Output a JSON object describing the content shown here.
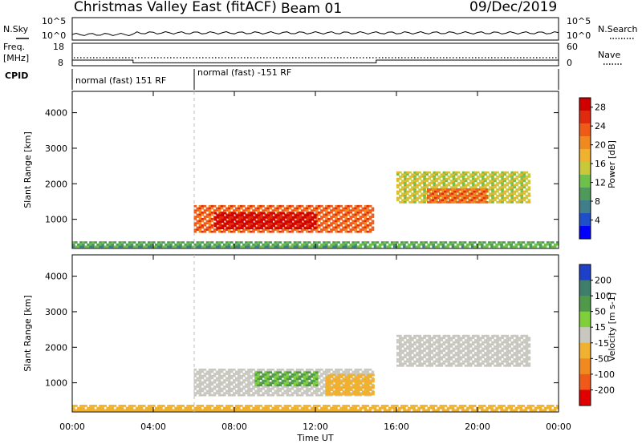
{
  "header": {
    "station": "Christmas Valley East (fitACF)",
    "beam": "Beam 01",
    "date": "09/Dec/2019"
  },
  "top_panels": {
    "nsky_label": "N.Sky",
    "nsearch_label": "N.Search",
    "noise_ticks": [
      "10^5",
      "10^0"
    ],
    "freq_label_1": "Freq.",
    "freq_label_2": "[MHz]",
    "freq_ticks": [
      "18",
      "8"
    ],
    "nave_label": "Nave",
    "nave_ticks": [
      "60",
      "0"
    ],
    "cpid_label": "CPID",
    "cpid_segments": [
      {
        "label": "normal (fast) 151 RF",
        "start_h": 0,
        "end_h": 6
      },
      {
        "label": "normal (fast) -151 RF",
        "start_h": 6,
        "end_h": 24
      }
    ],
    "freq_profile": [
      {
        "start_h": 0,
        "end_h": 3,
        "mhz": 10.5
      },
      {
        "start_h": 3,
        "end_h": 15,
        "mhz": 9.3
      },
      {
        "start_h": 15,
        "end_h": 24,
        "mhz": 10.5
      }
    ]
  },
  "chart_data": [
    {
      "type": "heatmap",
      "parameter": "Power",
      "ylabel": "Slant Range [km]",
      "xlabel": "",
      "ylim": [
        180,
        4600
      ],
      "xlim_hours": [
        0,
        24
      ],
      "yticks": [
        1000,
        2000,
        3000,
        4000
      ],
      "colorbar_label": "Power [dB]",
      "colorbar_ticks": [
        4,
        8,
        12,
        16,
        20,
        24,
        28
      ],
      "colorbar_range": [
        0,
        30
      ],
      "colorbar_colors": [
        "#0000ff",
        "#1e4fc8",
        "#3f7e8a",
        "#4f9a5a",
        "#6fc04a",
        "#c8c83a",
        "#f0b030",
        "#f08a20",
        "#f05a18",
        "#e02a10",
        "#d00000"
      ],
      "regions": [
        {
          "t_start": 6.0,
          "t_end": 14.8,
          "r_min": 620,
          "r_max": 1380,
          "level": 22
        },
        {
          "t_start": 7.0,
          "t_end": 12.0,
          "r_min": 720,
          "r_max": 1150,
          "level": 28
        },
        {
          "t_start": 16.0,
          "t_end": 22.5,
          "r_min": 1450,
          "r_max": 2350,
          "level": 14
        },
        {
          "t_start": 17.5,
          "t_end": 20.5,
          "r_min": 1450,
          "r_max": 1850,
          "level": 22
        },
        {
          "t_start": 0.0,
          "t_end": 24.0,
          "r_min": 200,
          "r_max": 380,
          "level": 10
        }
      ]
    },
    {
      "type": "heatmap",
      "parameter": "Velocity",
      "ylabel": "Slant Range [km]",
      "xlabel": "Time UT",
      "ylim": [
        180,
        4600
      ],
      "xlim_hours": [
        0,
        24
      ],
      "yticks": [
        1000,
        2000,
        3000,
        4000
      ],
      "xticks": [
        "00:00",
        "04:00",
        "08:00",
        "12:00",
        "16:00",
        "20:00",
        "00:00"
      ],
      "colorbar_label": "Velocity [m s-1]",
      "colorbar_ticks": [
        200,
        100,
        50,
        15,
        -15,
        -50,
        -100,
        -200
      ],
      "colorbar_colors": [
        "#1e3fc8",
        "#3f7e6a",
        "#4f9a4a",
        "#7fcf3a",
        "#c8c8c0",
        "#f0b030",
        "#f08a20",
        "#f05a18",
        "#e00000"
      ],
      "regions": [
        {
          "t_start": 6.0,
          "t_end": 14.8,
          "r_min": 620,
          "r_max": 1380,
          "velocity": 0
        },
        {
          "t_start": 9.0,
          "t_end": 12.0,
          "r_min": 900,
          "r_max": 1300,
          "velocity": 30
        },
        {
          "t_start": 12.5,
          "t_end": 14.8,
          "r_min": 650,
          "r_max": 1200,
          "velocity": -30
        },
        {
          "t_start": 16.0,
          "t_end": 22.5,
          "r_min": 1450,
          "r_max": 2350,
          "velocity": 0
        },
        {
          "t_start": 0.0,
          "t_end": 24.0,
          "r_min": 200,
          "r_max": 380,
          "velocity": -30
        }
      ]
    }
  ]
}
